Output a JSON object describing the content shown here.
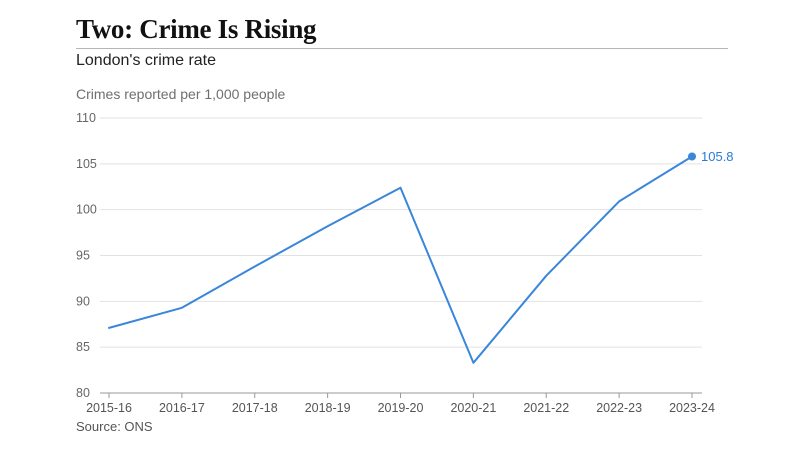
{
  "header": {
    "title": "Two: Crime Is Rising",
    "subtitle": "London's crime rate"
  },
  "footer": {
    "source": "Source: ONS"
  },
  "colors": {
    "line": "#3a86d9",
    "grid": "#e2e2e2",
    "axis": "#999999"
  },
  "chart_data": {
    "type": "line",
    "title": "",
    "xlabel": "",
    "ylabel": "Crimes reported per 1,000 people",
    "ylim": [
      80,
      110
    ],
    "yticks": [
      80,
      85,
      90,
      95,
      100,
      105,
      110
    ],
    "grid": true,
    "categories": [
      "2015-16",
      "2016-17",
      "2017-18",
      "2018-19",
      "2019-20",
      "2020-21",
      "2021-22",
      "2022-23",
      "2023-24"
    ],
    "series": [
      {
        "values": [
          87.1,
          89.3,
          93.8,
          98.2,
          102.4,
          83.3,
          92.8,
          100.9,
          105.8
        ],
        "end_label": "105.8"
      }
    ]
  }
}
